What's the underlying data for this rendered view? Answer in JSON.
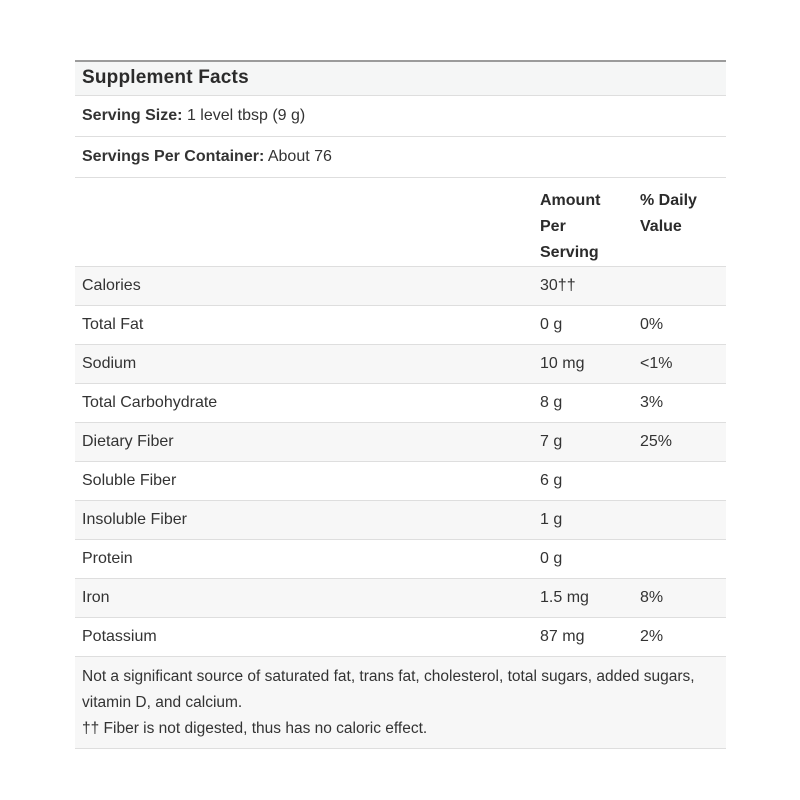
{
  "panel": {
    "title": "Supplement Facts",
    "serving_info": [
      {
        "label": "Serving Size:",
        "value": "1 level tbsp (9 g)"
      },
      {
        "label": "Servings Per Container:",
        "value": "About 76"
      }
    ],
    "column_headers": {
      "amount": "Amount Per Serving",
      "daily_value": "% Daily Value"
    },
    "rows": [
      {
        "nutrient": "Calories",
        "amount": "30††",
        "dv": ""
      },
      {
        "nutrient": "Total Fat",
        "amount": "0 g",
        "dv": "0%"
      },
      {
        "nutrient": "Sodium",
        "amount": "10 mg",
        "dv": "<1%"
      },
      {
        "nutrient": "Total Carbohydrate",
        "amount": "8 g",
        "dv": "3%"
      },
      {
        "nutrient": "Dietary Fiber",
        "amount": "7 g",
        "dv": "25%"
      },
      {
        "nutrient": "Soluble Fiber",
        "amount": "6 g",
        "dv": ""
      },
      {
        "nutrient": "Insoluble Fiber",
        "amount": "1 g",
        "dv": ""
      },
      {
        "nutrient": "Protein",
        "amount": "0 g",
        "dv": ""
      },
      {
        "nutrient": "Iron",
        "amount": "1.5 mg",
        "dv": "8%"
      },
      {
        "nutrient": "Potassium",
        "amount": "87 mg",
        "dv": "2%"
      }
    ],
    "footnotes": [
      "Not a significant source of saturated fat, trans fat, cholesterol, total sugars, added sugars, vitamin D, and calcium.",
      "†† Fiber is not digested, thus has no caloric effect."
    ]
  },
  "colors": {
    "stripe": "#f7f7f7",
    "title_background": "#f5f6f6",
    "separator": "#dedede",
    "top_border": "#9b9b9b",
    "text": "#333333"
  }
}
